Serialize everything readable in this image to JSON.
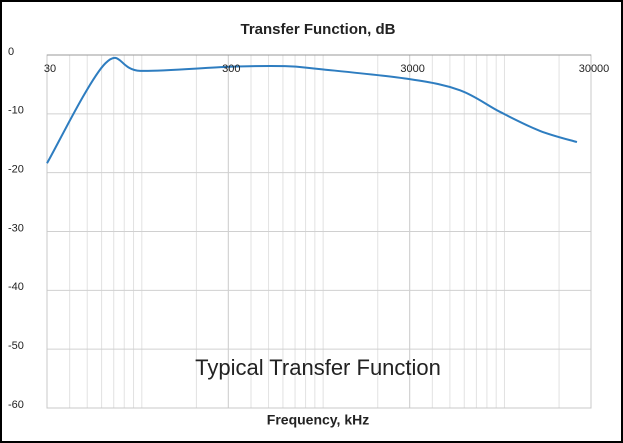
{
  "chart_data": {
    "type": "line",
    "title": "Transfer Function, dB",
    "x_label": "Frequency, kHz",
    "annotation": "Typical Transfer Function",
    "x": [
      30,
      63,
      98,
      306,
      617,
      961,
      3000,
      5690,
      9490,
      15700,
      25100
    ],
    "series": [
      {
        "name": "Transfer Function",
        "color": "#2e7dc0",
        "values": [
          -18.4,
          -1.4,
          -2.7,
          -2.0,
          -1.9,
          -2.4,
          -4.1,
          -6.0,
          -9.7,
          -12.9,
          -14.8
        ]
      }
    ],
    "xlim": [
      30,
      30000
    ],
    "xticks": [
      30,
      300,
      3000,
      30000
    ],
    "xscale": "log",
    "ylim": [
      -60,
      0
    ],
    "yticks": [
      0,
      -10,
      -20,
      -30,
      -40,
      -50,
      -60
    ],
    "grid": true
  }
}
